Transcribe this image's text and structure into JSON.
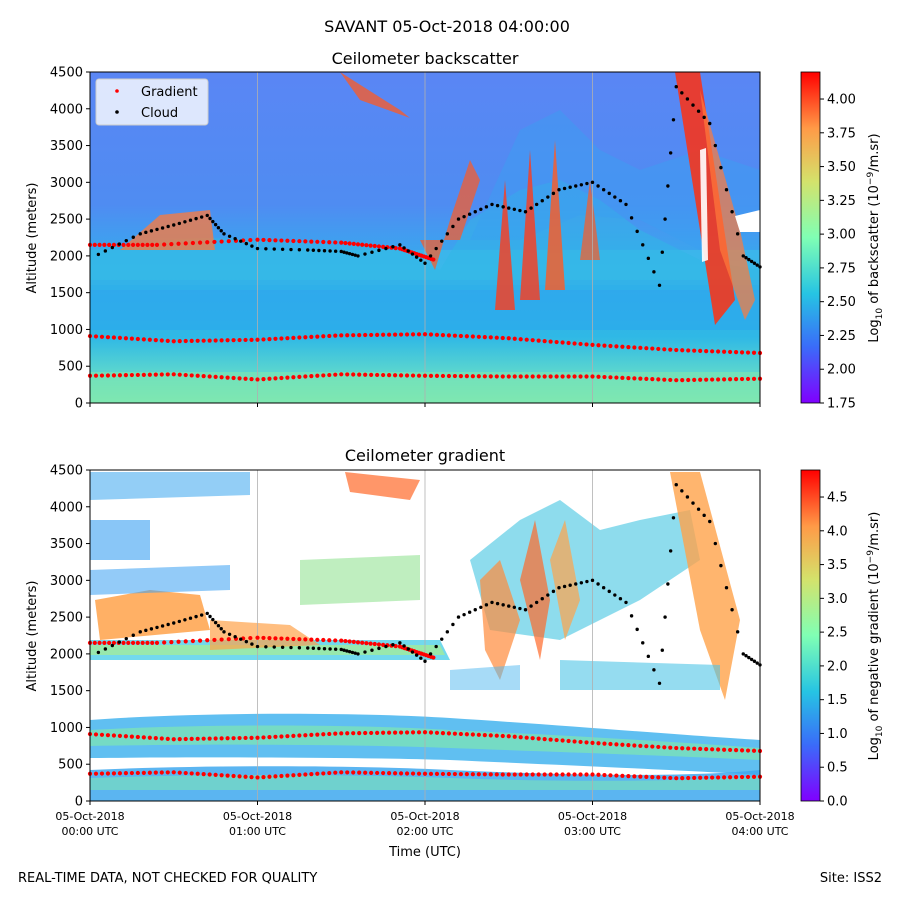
{
  "figure": {
    "suptitle": "SAVANT 05-Oct-2018 04:00:00",
    "footer_left": "REAL-TIME DATA, NOT CHECKED FOR QUALITY",
    "footer_right": "Site: ISS2"
  },
  "chart_data": [
    {
      "type": "heatmap",
      "title": "Ceilometer backscatter",
      "xlabel": "",
      "ylabel": "Altitude (meters)",
      "xlim": [
        "05-Oct-2018 00:00 UTC",
        "05-Oct-2018 04:00 UTC"
      ],
      "ylim": [
        0,
        4500
      ],
      "yticks": [
        0,
        500,
        1000,
        1500,
        2000,
        2500,
        3000,
        3500,
        4000,
        4500
      ],
      "xticks_visible_labels": false,
      "colormap": "rainbow",
      "colorbar": {
        "label_parts": [
          "Log",
          "10",
          " of backscatter (10",
          "−9",
          "/m.sr)"
        ],
        "range": [
          1.75,
          4.2
        ],
        "ticks": [
          "1.75",
          "2.00",
          "2.25",
          "2.50",
          "2.75",
          "3.00",
          "3.25",
          "3.50",
          "3.75",
          "4.00"
        ]
      },
      "legend": {
        "placement": "top-left",
        "entries": [
          {
            "label": "Gradient",
            "color": "#ff0000",
            "marker": "dot"
          },
          {
            "label": "Cloud",
            "color": "#000000",
            "marker": "dot"
          }
        ]
      },
      "series": [
        {
          "name": "Gradient",
          "color": "#ff0000",
          "points": [
            [
              0,
              910
            ],
            [
              0.5,
              840
            ],
            [
              1,
              860
            ],
            [
              1.5,
              920
            ],
            [
              2,
              935
            ],
            [
              2.5,
              880
            ],
            [
              3,
              790
            ],
            [
              3.5,
              720
            ],
            [
              4,
              680
            ]
          ]
        },
        {
          "name": "Gradient",
          "color": "#ff0000",
          "points": [
            [
              0,
              370
            ],
            [
              0.5,
              390
            ],
            [
              1,
              320
            ],
            [
              1.5,
              390
            ],
            [
              2,
              370
            ],
            [
              2.5,
              360
            ],
            [
              3,
              360
            ],
            [
              3.5,
              310
            ],
            [
              4,
              330
            ]
          ]
        },
        {
          "name": "Gradient",
          "color": "#ff0000",
          "points": [
            [
              0,
              2150
            ],
            [
              0.4,
              2150
            ],
            [
              1,
              2220
            ],
            [
              1.5,
              2180
            ],
            [
              1.85,
              2100
            ],
            [
              2.05,
              1950
            ]
          ]
        },
        {
          "name": "Cloud",
          "color": "#000000",
          "points": [
            [
              0.05,
              2020
            ],
            [
              0.3,
              2300
            ],
            [
              0.5,
              2420
            ],
            [
              0.7,
              2550
            ],
            [
              0.8,
              2300
            ],
            [
              1.0,
              2100
            ],
            [
              1.3,
              2080
            ],
            [
              1.5,
              2060
            ],
            [
              1.6,
              2000
            ],
            [
              1.85,
              2150
            ],
            [
              2.0,
              1900
            ],
            [
              2.2,
              2500
            ],
            [
              2.4,
              2700
            ],
            [
              2.6,
              2600
            ],
            [
              2.8,
              2900
            ],
            [
              3.0,
              3000
            ],
            [
              3.2,
              2700
            ],
            [
              3.4,
              1600
            ],
            [
              3.5,
              4300
            ],
            [
              3.7,
              3800
            ],
            [
              3.9,
              2000
            ],
            [
              4,
              1850
            ]
          ]
        }
      ]
    },
    {
      "type": "heatmap",
      "title": "Ceilometer gradient",
      "xlabel": "Time (UTC)",
      "ylabel": "Altitude (meters)",
      "xticks": [
        {
          "line1": "05-Oct-2018",
          "line2": "00:00 UTC"
        },
        {
          "line1": "05-Oct-2018",
          "line2": "01:00 UTC"
        },
        {
          "line1": "05-Oct-2018",
          "line2": "02:00 UTC"
        },
        {
          "line1": "05-Oct-2018",
          "line2": "03:00 UTC"
        },
        {
          "line1": "05-Oct-2018",
          "line2": "04:00 UTC"
        }
      ],
      "ylim": [
        0,
        4500
      ],
      "yticks": [
        0,
        500,
        1000,
        1500,
        2000,
        2500,
        3000,
        3500,
        4000,
        4500
      ],
      "colormap": "rainbow",
      "colorbar": {
        "label_parts": [
          "Log",
          "10",
          " of negative gradient (10",
          "−9",
          "/m.sr)"
        ],
        "range": [
          0.0,
          4.9
        ],
        "ticks": [
          "0.0",
          "0.5",
          "1.0",
          "1.5",
          "2.0",
          "2.5",
          "3.0",
          "3.5",
          "4.0",
          "4.5"
        ]
      },
      "series": [
        {
          "name": "Gradient",
          "color": "#ff0000",
          "points": [
            [
              0,
              910
            ],
            [
              0.5,
              840
            ],
            [
              1,
              860
            ],
            [
              1.5,
              920
            ],
            [
              2,
              935
            ],
            [
              2.5,
              880
            ],
            [
              3,
              790
            ],
            [
              3.5,
              720
            ],
            [
              4,
              680
            ]
          ]
        },
        {
          "name": "Gradient",
          "color": "#ff0000",
          "points": [
            [
              0,
              370
            ],
            [
              0.5,
              390
            ],
            [
              1,
              320
            ],
            [
              1.5,
              390
            ],
            [
              2,
              370
            ],
            [
              2.5,
              360
            ],
            [
              3,
              360
            ],
            [
              3.5,
              310
            ],
            [
              4,
              330
            ]
          ]
        },
        {
          "name": "Gradient",
          "color": "#ff0000",
          "points": [
            [
              0,
              2150
            ],
            [
              0.4,
              2150
            ],
            [
              1,
              2220
            ],
            [
              1.5,
              2180
            ],
            [
              1.85,
              2100
            ],
            [
              2.05,
              1950
            ]
          ]
        },
        {
          "name": "Cloud",
          "color": "#000000",
          "points": [
            [
              0.05,
              2020
            ],
            [
              0.3,
              2300
            ],
            [
              0.5,
              2420
            ],
            [
              0.7,
              2550
            ],
            [
              0.8,
              2300
            ],
            [
              1.0,
              2100
            ],
            [
              1.3,
              2080
            ],
            [
              1.5,
              2060
            ],
            [
              1.6,
              2000
            ],
            [
              1.85,
              2150
            ],
            [
              2.0,
              1900
            ],
            [
              2.2,
              2500
            ],
            [
              2.4,
              2700
            ],
            [
              2.6,
              2600
            ],
            [
              2.8,
              2900
            ],
            [
              3.0,
              3000
            ],
            [
              3.2,
              2700
            ],
            [
              3.4,
              1600
            ],
            [
              3.5,
              4300
            ],
            [
              3.7,
              3800
            ],
            [
              3.9,
              2000
            ],
            [
              4,
              1850
            ]
          ]
        }
      ]
    }
  ]
}
